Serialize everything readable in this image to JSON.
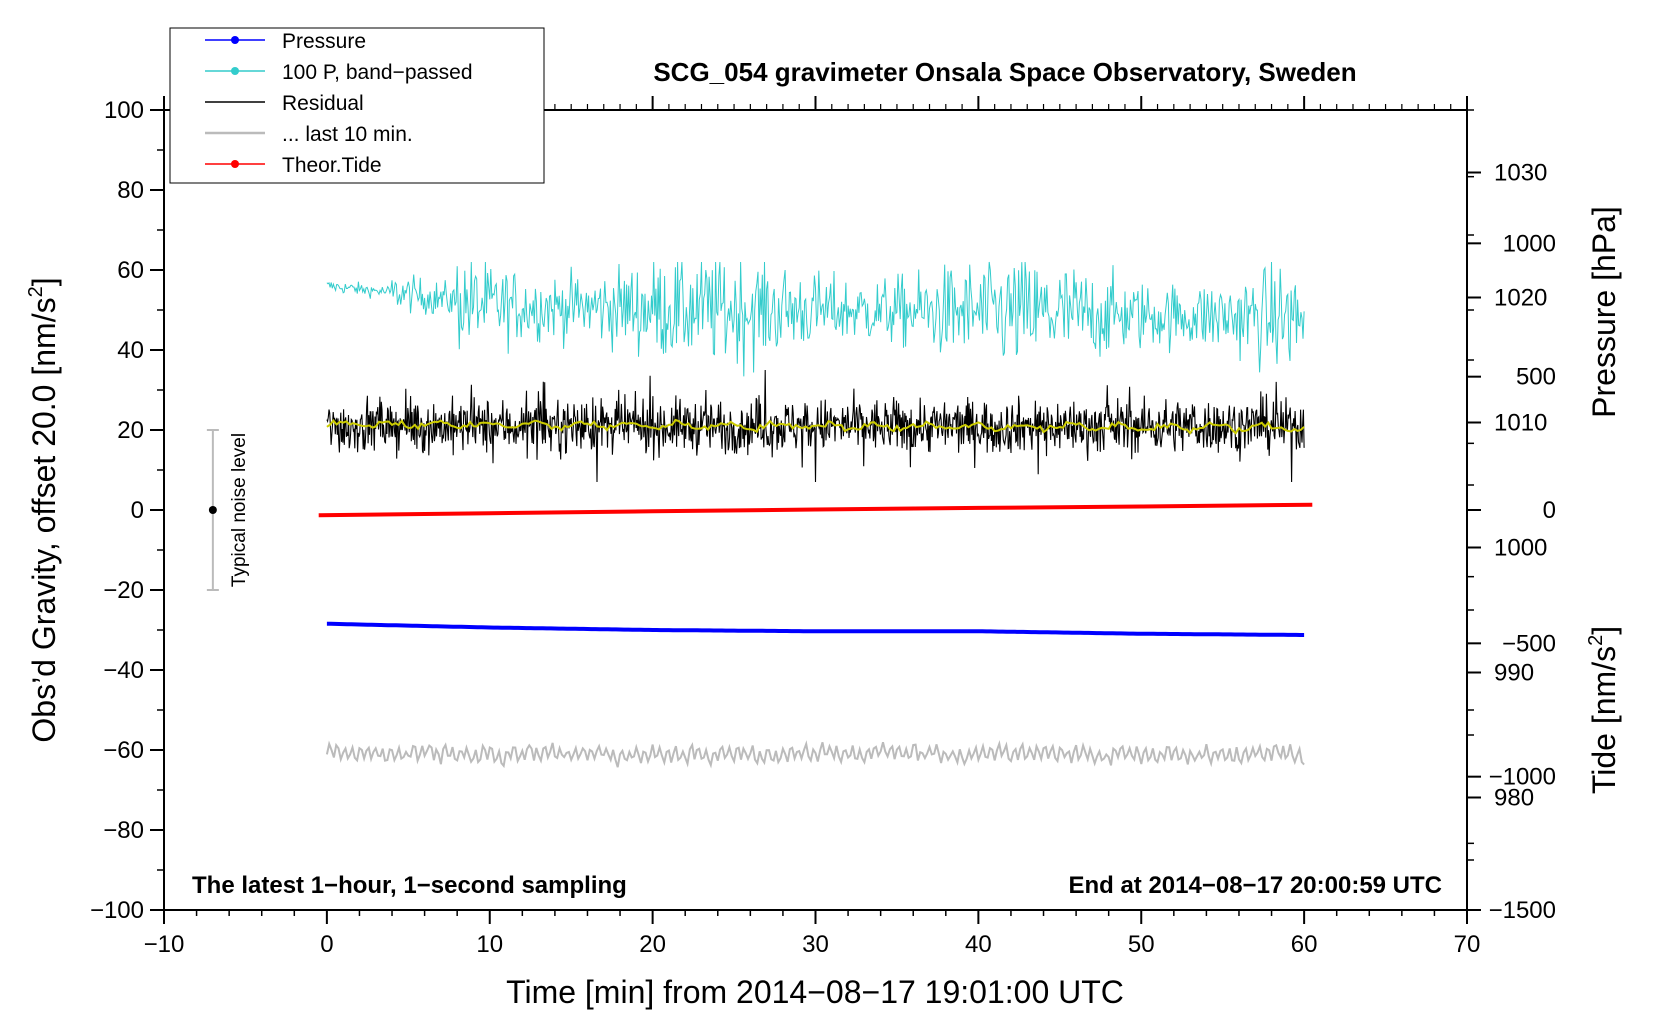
{
  "chart_data": {
    "type": "line",
    "title": "SCG_054 gravimeter Onsala Space Observatory, Sweden",
    "xlabel": "Time [min] from 2014−08−17 19:01:00 UTC",
    "ylabel_left": "Obs’d Gravity, offset 20.0 [nm/s²]",
    "ylabel_left_main": "Obs’d Gravity, offset 20.0 [nm/s",
    "ylabel_left_sup": "2",
    "ylabel_left_end": "]",
    "ylabel_right_pressure": "Pressure [hPa]",
    "ylabel_right_tide": "Tide [nm/s²]",
    "ylabel_right_tide_main": "Tide [nm/s",
    "ylabel_right_tide_sup": "2",
    "ylabel_right_tide_end": "]",
    "xlim": [
      -10,
      70
    ],
    "ylim": [
      -100,
      100
    ],
    "pressure_ylim": [
      971,
      1035
    ],
    "tide_ylim": [
      -1500,
      1500
    ],
    "x_ticks": [
      -10,
      0,
      10,
      20,
      30,
      40,
      50,
      60,
      70
    ],
    "x_tick_labels": [
      "−10",
      "0",
      "10",
      "20",
      "30",
      "40",
      "50",
      "60",
      "70"
    ],
    "y_ticks": [
      -100,
      -80,
      -60,
      -40,
      -20,
      0,
      20,
      40,
      60,
      80,
      100
    ],
    "y_tick_labels": [
      "−100",
      "−80",
      "−60",
      "−40",
      "−20",
      "0",
      "20",
      "40",
      "60",
      "80",
      "100"
    ],
    "pressure_ticks": [
      980,
      990,
      1000,
      1010,
      1020,
      1030
    ],
    "pressure_tick_labels": [
      "980",
      "990",
      "1000",
      "1010",
      "1020",
      "1030"
    ],
    "tide_ticks": [
      -1500,
      -1000,
      -500,
      0,
      500,
      1000
    ],
    "tide_tick_labels": [
      "−1500",
      "−1000",
      "−500",
      "0",
      "500",
      "1000"
    ],
    "legend": [
      {
        "label": "Pressure",
        "color": "#0000ff",
        "marker": true
      },
      {
        "label": "100 P, band−passed",
        "color": "#33cccc",
        "marker": true
      },
      {
        "label": "Residual",
        "color": "#000000",
        "marker": false
      },
      {
        "label": "... last 10 min.",
        "color": "#bbbbbb",
        "marker": false
      },
      {
        "label": "Theor.Tide",
        "color": "#ff0000",
        "marker": true
      }
    ],
    "legend_position": "top-left",
    "annotations": {
      "bottom_left": "The latest 1−hour, 1−second sampling",
      "bottom_right": "End at 2014−08−17 20:00:59 UTC",
      "noise_label": "Typical noise level"
    },
    "noise_bar": {
      "x": -7,
      "center": 0,
      "low": -20,
      "high": 20
    },
    "series": [
      {
        "name": "Pressure",
        "axis": "pressure",
        "color": "#0000ff",
        "x": [
          0,
          10,
          20,
          30,
          40,
          50,
          60
        ],
        "values": [
          993.9,
          993.6,
          993.4,
          993.3,
          993.3,
          993.1,
          993.0
        ]
      },
      {
        "name": "100 P, band−passed",
        "axis": "left",
        "color": "#33cccc",
        "x_range": [
          0,
          60
        ],
        "center_trend": [
          [
            0,
            56
          ],
          [
            5,
            54
          ],
          [
            10,
            51
          ],
          [
            30,
            50
          ],
          [
            60,
            48
          ]
        ],
        "min": 28,
        "max": 62
      },
      {
        "name": "Residual",
        "axis": "left",
        "color": "#000000",
        "x_range": [
          0,
          60
        ],
        "center": 21,
        "min": 7,
        "max": 35
      },
      {
        "name": "Residual (smoothed)",
        "axis": "left",
        "color": "#cccc00",
        "x_range": [
          0,
          60
        ],
        "center": 21
      },
      {
        "name": "... last 10 min.",
        "axis": "left",
        "color": "#bbbbbb",
        "x_range": [
          0,
          60
        ],
        "center": -61,
        "min": -73,
        "max": -53
      },
      {
        "name": "Theor.Tide",
        "axis": "tide",
        "color": "#ff0000",
        "x": [
          -0.5,
          10,
          20,
          30,
          40,
          50,
          60.5
        ],
        "values": [
          -20,
          -12,
          -5,
          2,
          8,
          13,
          20
        ]
      }
    ]
  }
}
